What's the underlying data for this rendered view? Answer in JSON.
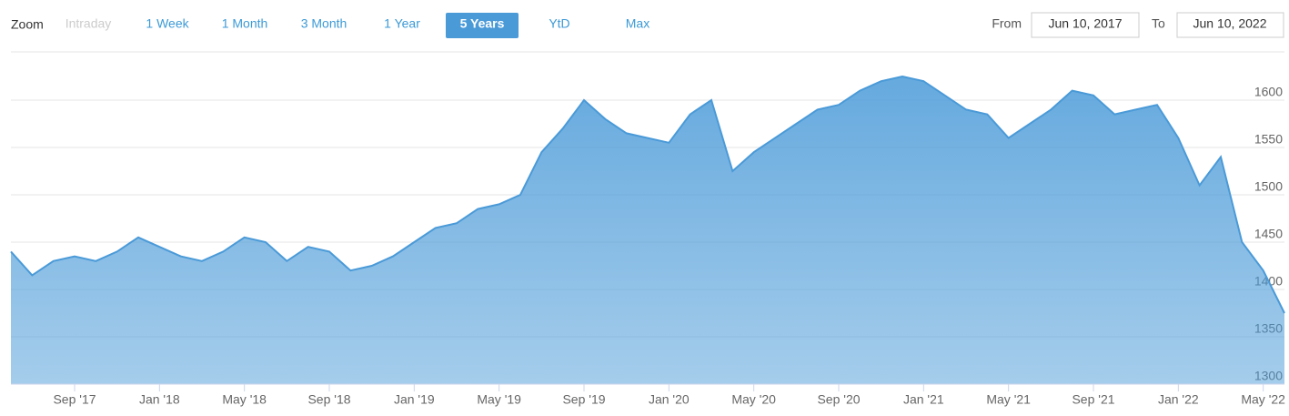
{
  "ui": {
    "zoom_label": "Zoom",
    "buttons": [
      "Intraday",
      "1 Week",
      "1 Month",
      "3 Month",
      "1 Year",
      "5 Years",
      "YtD",
      "Max"
    ],
    "disabled_button": "Intraday",
    "selected_button": "5 Years",
    "from_label": "From",
    "from_date": "Jun 10, 2017",
    "to_label": "To",
    "to_date": "Jun 10, 2022"
  },
  "chart_data": {
    "type": "area",
    "color": "#4a9ad8",
    "grid": true,
    "y_axis_side": "right",
    "x": [
      "2017-06",
      "2017-07",
      "2017-08",
      "2017-09",
      "2017-10",
      "2017-11",
      "2017-12",
      "2018-01",
      "2018-02",
      "2018-03",
      "2018-04",
      "2018-05",
      "2018-06",
      "2018-07",
      "2018-08",
      "2018-09",
      "2018-10",
      "2018-11",
      "2018-12",
      "2019-01",
      "2019-02",
      "2019-03",
      "2019-04",
      "2019-05",
      "2019-06",
      "2019-07",
      "2019-08",
      "2019-09",
      "2019-10",
      "2019-11",
      "2019-12",
      "2020-01",
      "2020-02",
      "2020-03",
      "2020-04",
      "2020-05",
      "2020-06",
      "2020-07",
      "2020-08",
      "2020-09",
      "2020-10",
      "2020-11",
      "2020-12",
      "2021-01",
      "2021-02",
      "2021-03",
      "2021-04",
      "2021-05",
      "2021-06",
      "2021-07",
      "2021-08",
      "2021-09",
      "2021-10",
      "2021-11",
      "2021-12",
      "2022-01",
      "2022-02",
      "2022-03",
      "2022-04",
      "2022-05",
      "2022-06"
    ],
    "values": [
      1440,
      1415,
      1430,
      1435,
      1430,
      1440,
      1455,
      1445,
      1435,
      1430,
      1440,
      1455,
      1450,
      1430,
      1445,
      1440,
      1420,
      1425,
      1435,
      1450,
      1465,
      1470,
      1485,
      1490,
      1500,
      1545,
      1570,
      1600,
      1580,
      1565,
      1560,
      1555,
      1585,
      1600,
      1525,
      1545,
      1560,
      1575,
      1590,
      1595,
      1610,
      1620,
      1625,
      1620,
      1605,
      1590,
      1585,
      1560,
      1575,
      1590,
      1610,
      1605,
      1585,
      1590,
      1595,
      1560,
      1510,
      1540,
      1450,
      1420,
      1375
    ],
    "xlim": [
      "2017-06",
      "2022-06"
    ],
    "xticks": [
      {
        "value": "2017-09",
        "label": "Sep '17"
      },
      {
        "value": "2018-01",
        "label": "Jan '18"
      },
      {
        "value": "2018-05",
        "label": "May '18"
      },
      {
        "value": "2018-09",
        "label": "Sep '18"
      },
      {
        "value": "2019-01",
        "label": "Jan '19"
      },
      {
        "value": "2019-05",
        "label": "May '19"
      },
      {
        "value": "2019-09",
        "label": "Sep '19"
      },
      {
        "value": "2020-01",
        "label": "Jan '20"
      },
      {
        "value": "2020-05",
        "label": "May '20"
      },
      {
        "value": "2020-09",
        "label": "Sep '20"
      },
      {
        "value": "2021-01",
        "label": "Jan '21"
      },
      {
        "value": "2021-05",
        "label": "May '21"
      },
      {
        "value": "2021-09",
        "label": "Sep '21"
      },
      {
        "value": "2022-01",
        "label": "Jan '22"
      },
      {
        "value": "2022-05",
        "label": "May '22"
      }
    ],
    "ylim": [
      1300,
      1650
    ],
    "yticks": [
      1300,
      1350,
      1400,
      1450,
      1500,
      1550,
      1600
    ]
  }
}
